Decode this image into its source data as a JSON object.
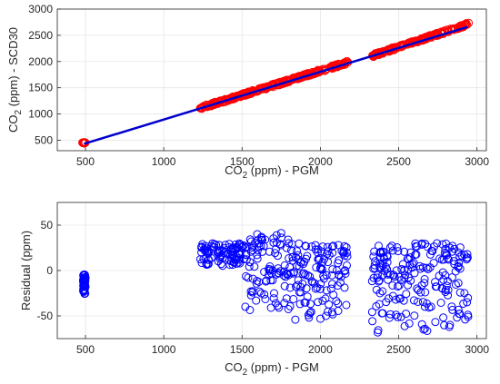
{
  "colors": {
    "marker_red": "#ff0000",
    "marker_blue": "#0000ff",
    "fit_line": "#0000cd",
    "grid": "#e6e6e6",
    "axis": "#262626"
  },
  "chart_data": [
    {
      "type": "scatter",
      "title": "",
      "xlabel": "CO_2 (ppm) - PGM",
      "ylabel": "CO_2 (ppm) - SCD30",
      "xlim": [
        320,
        3060
      ],
      "ylim": [
        300,
        3000
      ],
      "xticks": [
        500,
        1000,
        1500,
        2000,
        2500,
        3000
      ],
      "yticks": [
        500,
        1000,
        1500,
        2000,
        2500,
        3000
      ],
      "grid": true,
      "legend": "none",
      "series": [
        {
          "kind": "markers",
          "marker": "circle-open",
          "color": "#ff0000",
          "clusters": [
            {
              "x": [
                480,
                500
              ],
              "y": [
                440,
                460
              ]
            },
            {
              "x": [
                1230,
                2180
              ],
              "y_at_x_start": 1110,
              "y_at_x_end": 1990
            },
            {
              "x": [
                2330,
                2950
              ],
              "y_at_x_start": 2110,
              "y_at_x_end": 2720
            }
          ]
        },
        {
          "kind": "line",
          "color": "#0000cd",
          "x": [
            490,
            2940
          ],
          "y": [
            430,
            2660
          ]
        }
      ]
    },
    {
      "type": "scatter",
      "title": "",
      "xlabel": "CO_2 (ppm) - PGM",
      "ylabel": "Residual (ppm)",
      "xlim": [
        320,
        3060
      ],
      "ylim": [
        -75,
        75
      ],
      "xticks": [
        500,
        1000,
        1500,
        2000,
        2500,
        3000
      ],
      "yticks": [
        -50,
        0,
        50
      ],
      "grid": true,
      "legend": "none",
      "series": [
        {
          "kind": "markers",
          "marker": "circle-open",
          "color": "#0000ff",
          "clusters": [
            {
              "x": [
                485,
                500
              ],
              "y": [
                -26,
                -4
              ]
            },
            {
              "x": [
                1230,
                1530
              ],
              "y": [
                5,
                30
              ]
            },
            {
              "x": [
                1520,
                1800
              ],
              "y": [
                -45,
                42
              ]
            },
            {
              "x": [
                1800,
                2180
              ],
              "y": [
                -55,
                30
              ]
            },
            {
              "x": [
                2330,
                2950
              ],
              "y": [
                -70,
                30
              ]
            }
          ]
        }
      ]
    }
  ]
}
